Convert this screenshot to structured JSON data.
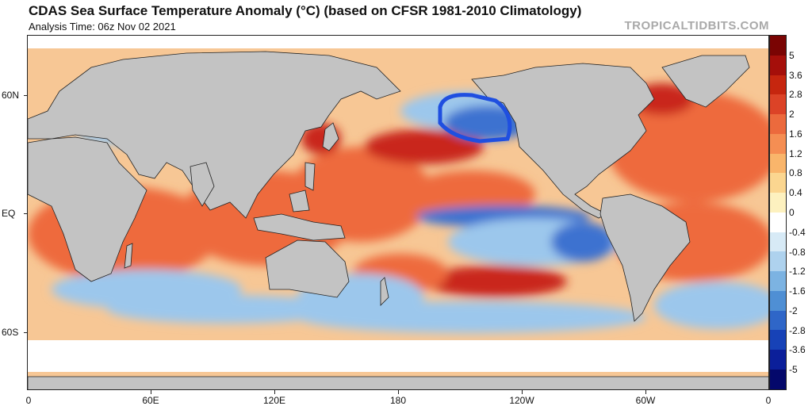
{
  "header": {
    "title": "CDAS Sea Surface Temperature Anomaly (°C) (based on CFSR 1981-2010 Climatology)",
    "subtitle": "Analysis Time: 06z Nov 02 2021",
    "watermark": "TROPICALTIDBITS.COM"
  },
  "axes": {
    "lat_labels": [
      "60N",
      "EQ",
      "60S"
    ],
    "lon_labels": [
      "0",
      "60E",
      "120E",
      "180",
      "120W",
      "60W",
      "0"
    ]
  },
  "colorbar": {
    "labels": [
      "5",
      "3.6",
      "2.8",
      "2",
      "1.6",
      "1.2",
      "0.8",
      "0.4",
      "0",
      "-0.4",
      "-0.8",
      "-1.2",
      "-1.6",
      "-2",
      "-2.8",
      "-3.6",
      "-5"
    ],
    "colors": [
      "#7a0403",
      "#a50f0a",
      "#c6260f",
      "#dc4327",
      "#ec6a3d",
      "#f58e53",
      "#f9b56b",
      "#fbd690",
      "#fdf1bf",
      "#ffffff",
      "#d7eaf6",
      "#aed2ee",
      "#7cb3e2",
      "#4f8fd4",
      "#2f66c8",
      "#1742b7",
      "#0b1f9a",
      "#04086b"
    ]
  },
  "map_colors": {
    "land": "#c3c3c3",
    "ice": "#ffffff",
    "warm": "#ee6a3c",
    "hot": "#c9271a",
    "cool": "#9cc7ec",
    "cold": "#3c72d0",
    "circle": "#1f4fe0"
  }
}
